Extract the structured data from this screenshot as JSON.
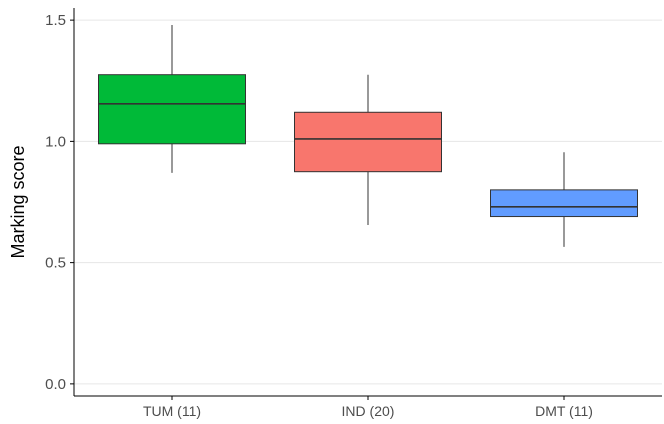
{
  "chart_data": {
    "type": "box",
    "title": "",
    "xlabel": "",
    "ylabel": "Marking score",
    "ylim": [
      -0.05,
      1.55
    ],
    "y_ticks": [
      0.0,
      0.5,
      1.0,
      1.5
    ],
    "y_tick_labels": [
      "0.0",
      "0.5",
      "1.0",
      "1.5"
    ],
    "categories": [
      "TUM (11)",
      "IND (20)",
      "DMT (11)"
    ],
    "boxes": [
      {
        "category": "TUM (11)",
        "min": 0.87,
        "q1": 0.99,
        "median": 1.155,
        "q3": 1.275,
        "max": 1.48,
        "color": "#00BA38"
      },
      {
        "category": "IND (20)",
        "min": 0.655,
        "q1": 0.875,
        "median": 1.01,
        "q3": 1.12,
        "max": 1.275,
        "color": "#F8766D"
      },
      {
        "category": "DMT (11)",
        "min": 0.565,
        "q1": 0.69,
        "median": 0.73,
        "q3": 0.8,
        "max": 0.955,
        "color": "#619CFF"
      }
    ],
    "grid": "horizontal",
    "legend": "none"
  }
}
